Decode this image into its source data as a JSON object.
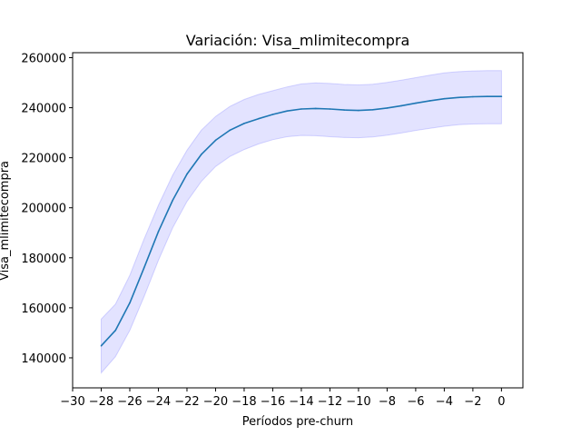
{
  "chart_data": {
    "type": "line",
    "title": "Variación: Visa_mlimitecompra",
    "xlabel": "Períodos pre-churn",
    "ylabel": "Visa_mlimitecompra",
    "xlim": [
      -30,
      1.5
    ],
    "ylim": [
      128000,
      262000
    ],
    "xticks": [
      -30,
      -28,
      -26,
      -24,
      -22,
      -20,
      -18,
      -16,
      -14,
      -12,
      -10,
      -8,
      -6,
      -4,
      -2,
      0
    ],
    "yticks": [
      140000,
      160000,
      180000,
      200000,
      220000,
      240000,
      260000
    ],
    "grid": false,
    "legend": "none",
    "colors": {
      "line": "#1f77b4",
      "band": "#6464ff"
    },
    "series": [
      {
        "x": [
          -28,
          -27,
          -26,
          -25,
          -24,
          -23,
          -22,
          -21,
          -20,
          -19,
          -18,
          -17,
          -16,
          -15,
          -14,
          -13,
          -12,
          -11,
          -10,
          -9,
          -8,
          -7,
          -6,
          -5,
          -4,
          -3,
          -2,
          -1,
          0
        ],
        "values": [
          144800,
          151000,
          162000,
          176000,
          190500,
          203000,
          213500,
          221300,
          227000,
          231000,
          233700,
          235600,
          237300,
          238700,
          239500,
          239700,
          239500,
          239100,
          238900,
          239200,
          239900,
          240800,
          241800,
          242800,
          243600,
          244100,
          244400,
          244500,
          244500
        ],
        "upper": [
          155500,
          161500,
          173000,
          187500,
          201000,
          213000,
          223000,
          231000,
          236500,
          240500,
          243300,
          245300,
          246800,
          248300,
          249500,
          249900,
          249700,
          249300,
          249100,
          249400,
          250100,
          251000,
          252000,
          253000,
          253900,
          254400,
          254700,
          254800,
          254800
        ],
        "lower": [
          134000,
          140500,
          151000,
          164500,
          179000,
          192000,
          202500,
          210500,
          216500,
          220500,
          223300,
          225500,
          227200,
          228400,
          228900,
          228800,
          228400,
          228100,
          228000,
          228300,
          229000,
          229900,
          230900,
          231800,
          232600,
          233200,
          233500,
          233600,
          233600
        ]
      }
    ]
  }
}
